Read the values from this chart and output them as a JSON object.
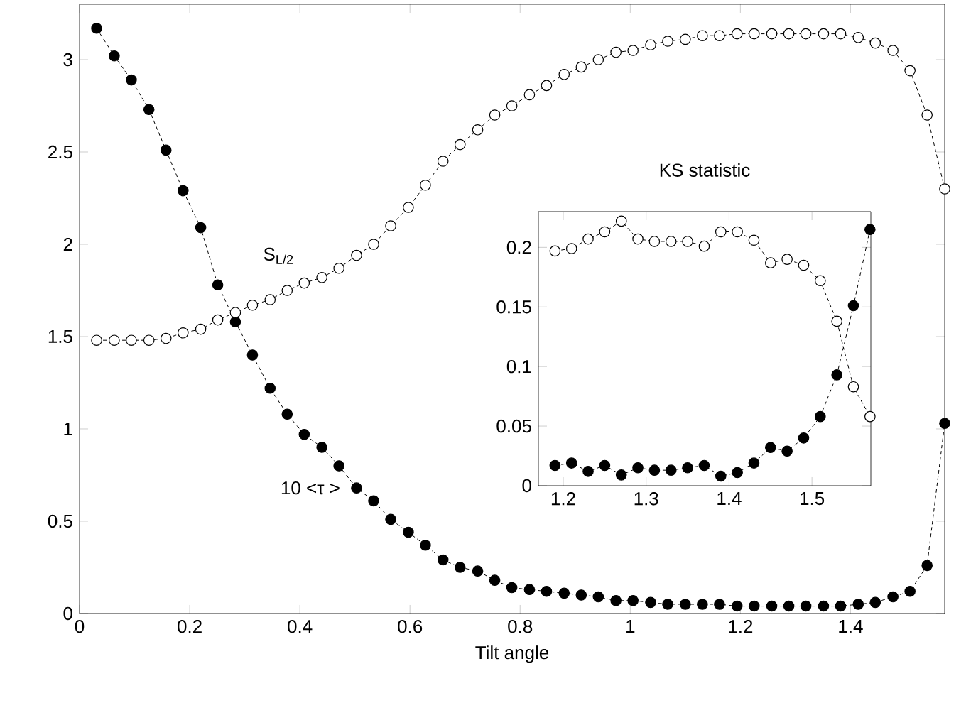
{
  "chart_data": [
    {
      "type": "line",
      "xlabel": "Tilt angle",
      "xlim": [
        0,
        1.571
      ],
      "ylim": [
        0,
        3.3
      ],
      "xticks": [
        0,
        0.2,
        0.4,
        0.6,
        0.8,
        1,
        1.2,
        1.4
      ],
      "yticks": [
        0,
        0.5,
        1,
        1.5,
        2,
        2.5,
        3
      ],
      "marker": "circle",
      "line_style": "dashed",
      "x": [
        0.031,
        0.063,
        0.094,
        0.126,
        0.157,
        0.188,
        0.22,
        0.251,
        0.283,
        0.314,
        0.346,
        0.377,
        0.408,
        0.44,
        0.471,
        0.503,
        0.534,
        0.565,
        0.597,
        0.628,
        0.66,
        0.691,
        0.723,
        0.754,
        0.785,
        0.817,
        0.848,
        0.88,
        0.911,
        0.942,
        0.974,
        1.005,
        1.037,
        1.068,
        1.1,
        1.131,
        1.162,
        1.194,
        1.225,
        1.257,
        1.288,
        1.319,
        1.351,
        1.382,
        1.414,
        1.445,
        1.477,
        1.508,
        1.539,
        1.571
      ],
      "series": [
        {
          "name": "10 <τ >",
          "color": "#000000",
          "values": [
            3.17,
            3.02,
            2.89,
            2.73,
            2.51,
            2.29,
            2.09,
            1.78,
            1.58,
            1.4,
            1.22,
            1.08,
            0.97,
            0.9,
            0.8,
            0.68,
            0.61,
            0.51,
            0.44,
            0.37,
            0.29,
            0.25,
            0.23,
            0.18,
            0.14,
            0.13,
            0.12,
            0.11,
            0.1,
            0.09,
            0.07,
            0.07,
            0.06,
            0.05,
            0.05,
            0.05,
            0.05,
            0.04,
            0.04,
            0.04,
            0.04,
            0.04,
            0.04,
            0.04,
            0.05,
            0.06,
            0.09,
            0.12,
            0.26,
            1.03
          ]
        },
        {
          "name": "S$_{L/2}$",
          "color": "#000000",
          "values": [
            1.48,
            1.48,
            1.48,
            1.48,
            1.49,
            1.52,
            1.54,
            1.59,
            1.63,
            1.67,
            1.7,
            1.75,
            1.79,
            1.82,
            1.87,
            1.94,
            2.0,
            2.1,
            2.2,
            2.32,
            2.45,
            2.54,
            2.62,
            2.7,
            2.75,
            2.81,
            2.86,
            2.92,
            2.96,
            3.0,
            3.04,
            3.05,
            3.08,
            3.1,
            3.11,
            3.13,
            3.13,
            3.14,
            3.14,
            3.14,
            3.14,
            3.14,
            3.14,
            3.14,
            3.12,
            3.09,
            3.05,
            2.94,
            2.7,
            2.3
          ]
        }
      ]
    },
    {
      "type": "line",
      "title": "KS statistic",
      "xlim": [
        1.17,
        1.571
      ],
      "ylim": [
        0,
        0.23
      ],
      "xticks": [
        1.2,
        1.3,
        1.4,
        1.5
      ],
      "yticks": [
        0,
        0.05,
        0.1,
        0.15,
        0.2
      ],
      "marker": "circle",
      "line_style": "dashed",
      "x": [
        1.19,
        1.21,
        1.23,
        1.25,
        1.27,
        1.29,
        1.31,
        1.33,
        1.35,
        1.37,
        1.39,
        1.41,
        1.43,
        1.45,
        1.47,
        1.49,
        1.51,
        1.53,
        1.55,
        1.57
      ],
      "series": [
        {
          "color": "#000000",
          "values": [
            0.017,
            0.019,
            0.012,
            0.017,
            0.009,
            0.015,
            0.013,
            0.013,
            0.015,
            0.017,
            0.008,
            0.011,
            0.019,
            0.032,
            0.029,
            0.04,
            0.058,
            0.093,
            0.151,
            0.215
          ]
        },
        {
          "color": "#000000",
          "values": [
            0.197,
            0.199,
            0.207,
            0.213,
            0.222,
            0.207,
            0.205,
            0.205,
            0.205,
            0.201,
            0.213,
            0.213,
            0.206,
            0.187,
            0.19,
            0.185,
            0.172,
            0.138,
            0.083,
            0.058
          ]
        }
      ]
    }
  ]
}
